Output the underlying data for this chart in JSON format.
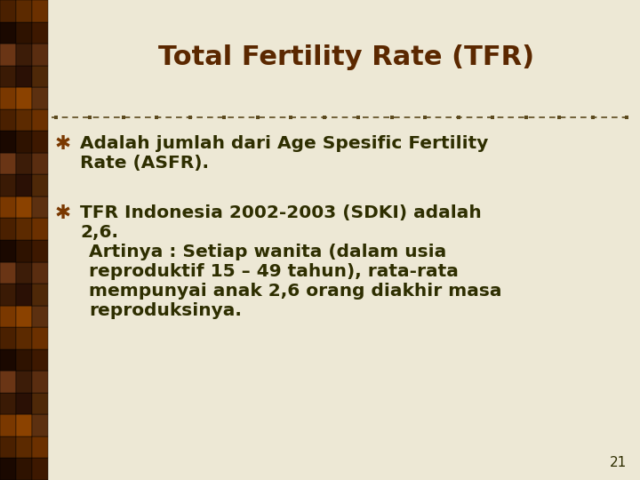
{
  "title": "Total Fertility Rate (TFR)",
  "title_color": "#5B2800",
  "title_fontsize": 22,
  "bg_color": "#EDE8D5",
  "left_bar_width": 0.075,
  "text_color": "#2E2E00",
  "bullet_color": "#7A3800",
  "slide_number": "21",
  "bullet1_line1": "Adalah jumlah dari Age Spesific Fertility",
  "bullet1_line2": "Rate (ASFR).",
  "bullet2_line1": "TFR Indonesia 2002-2003 (SDKI) adalah",
  "bullet2_line2": "2,6.",
  "sub_line1": "Artinya : Setiap wanita (dalam usia",
  "sub_line2": "reproduktif 15 – 49 tahun), rata-rata",
  "sub_line3": "mempunyai anak 2,6 orang diakhir masa",
  "sub_line4": "reproduksinya.",
  "divider_color": "#5C4A1E",
  "font_size_body": 14.5,
  "grid_colors": [
    "#2A1200",
    "#5C3010",
    "#8B5020",
    "#3D1A00",
    "#6B3818"
  ],
  "num_grid_rows": 22,
  "num_grid_cols": 3
}
